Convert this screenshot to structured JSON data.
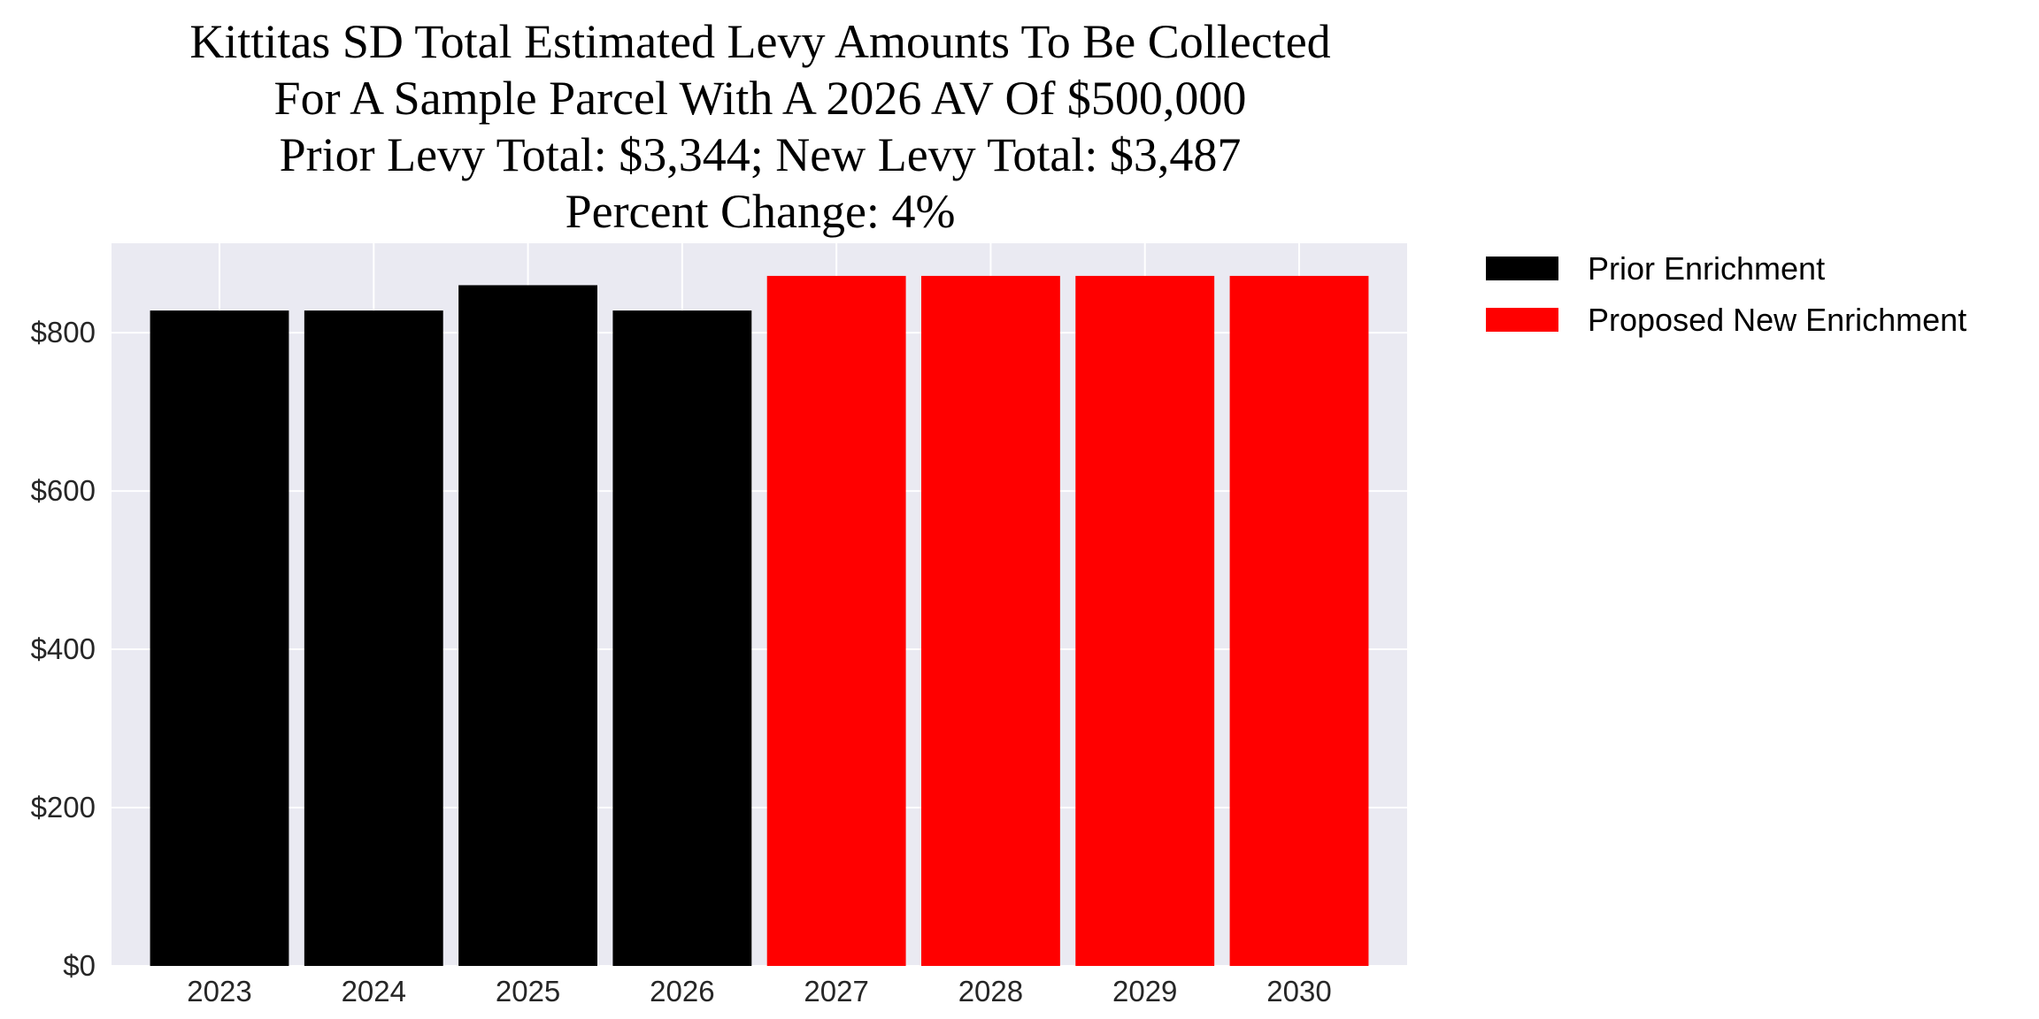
{
  "chart_data": {
    "type": "bar",
    "title_lines": [
      "Kittitas SD Total Estimated Levy Amounts To Be Collected",
      "For A Sample Parcel With A 2026 AV Of $500,000",
      "Prior Levy Total:  $3,344; New Levy Total: $3,487",
      "Percent Change: 4%"
    ],
    "xlabel": "",
    "ylabel": "",
    "categories": [
      "2023",
      "2024",
      "2025",
      "2026",
      "2027",
      "2028",
      "2029",
      "2030"
    ],
    "series": [
      {
        "name": "Prior Enrichment",
        "color": "#000000",
        "values": [
          828,
          828,
          860,
          828,
          null,
          null,
          null,
          null
        ]
      },
      {
        "name": "Proposed New Enrichment",
        "color": "#ff0000",
        "values": [
          null,
          null,
          null,
          null,
          871.75,
          871.75,
          871.75,
          871.75
        ]
      }
    ],
    "ylim": [
      0,
      913
    ],
    "yticks": [
      0,
      200,
      400,
      600,
      800
    ],
    "ytick_labels": [
      "$0",
      "$200",
      "$400",
      "$600",
      "$800"
    ],
    "grid": true,
    "background": "#eaeaf2",
    "legend_placement": "outside-top-right"
  }
}
